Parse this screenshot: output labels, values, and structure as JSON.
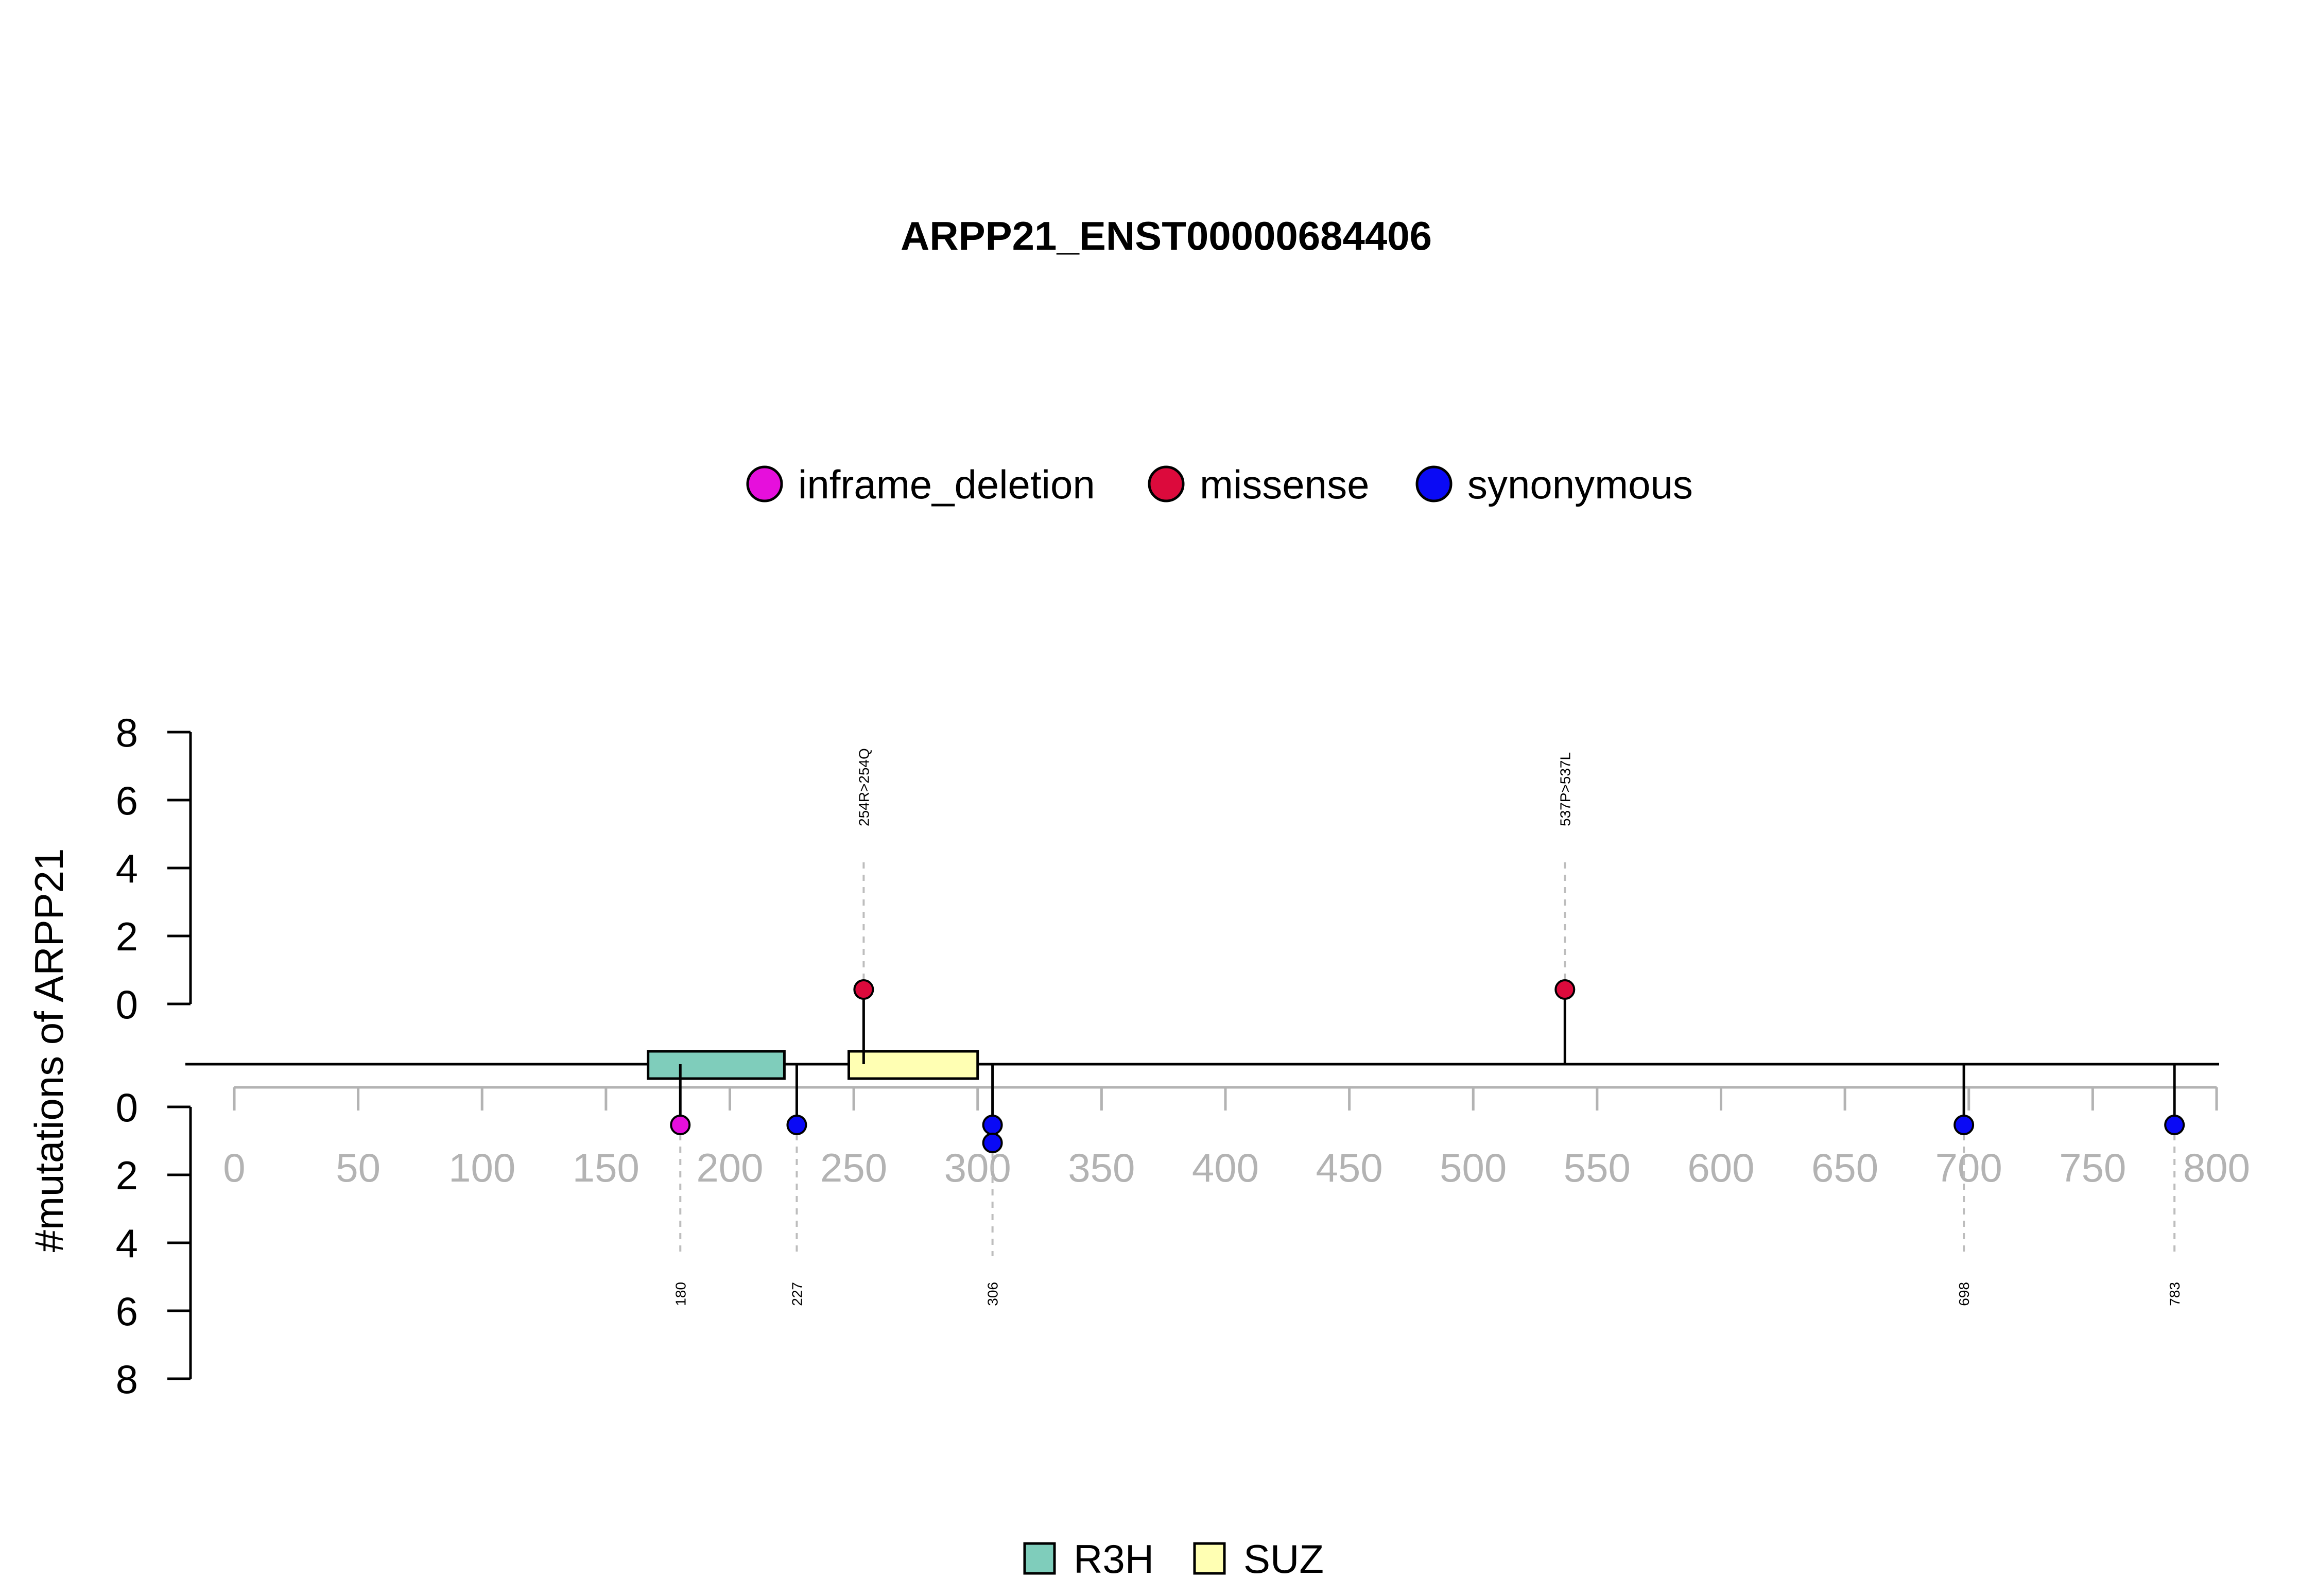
{
  "chart_data": {
    "type": "lollipop",
    "title": "ARPP21_ENST00000684406",
    "ylabel": "#mutations of ARPP21",
    "xlim": [
      0,
      800
    ],
    "x_ticks": [
      0,
      50,
      100,
      150,
      200,
      250,
      300,
      350,
      400,
      450,
      500,
      550,
      600,
      650,
      700,
      750,
      800
    ],
    "y_ticks": [
      0,
      2,
      4,
      6,
      8
    ],
    "ylim": [
      0,
      8
    ],
    "protein_length": 800,
    "legend_mutations": [
      {
        "label": "inframe_deletion",
        "color": "#e60fdc"
      },
      {
        "label": "missense",
        "color": "#dc0a3c"
      },
      {
        "label": "synonymous",
        "color": "#0a0af5"
      }
    ],
    "domains": [
      {
        "name": "R3H",
        "start": 167,
        "end": 222,
        "color": "#7fcdbb"
      },
      {
        "name": "SUZ",
        "start": 248,
        "end": 300,
        "color": "#ffffb3"
      }
    ],
    "top_mutations": [
      {
        "position": 254,
        "type": "missense",
        "count": 1,
        "label": "254R>254Q"
      },
      {
        "position": 537,
        "type": "missense",
        "count": 1,
        "label": "537P>537L"
      }
    ],
    "bottom_mutations": [
      {
        "position": 180,
        "type": "inframe_deletion",
        "count": 1,
        "label": "180"
      },
      {
        "position": 227,
        "type": "synonymous",
        "count": 1,
        "label": "227"
      },
      {
        "position": 306,
        "type": "synonymous",
        "count": 2,
        "label": "306"
      },
      {
        "position": 698,
        "type": "synonymous",
        "count": 1,
        "label": "698"
      },
      {
        "position": 783,
        "type": "synonymous",
        "count": 1,
        "label": "783"
      }
    ]
  }
}
